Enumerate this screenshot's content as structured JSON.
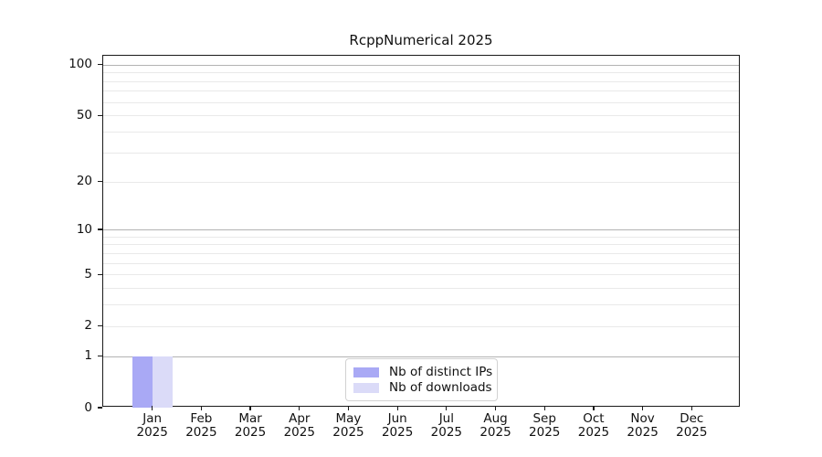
{
  "chart_data": {
    "type": "bar",
    "title": "RcppNumerical 2025",
    "xlabel": "",
    "ylabel": "",
    "yscale": "log1p",
    "ylim": [
      0,
      113
    ],
    "y_ticks": [
      0,
      1,
      2,
      5,
      10,
      20,
      50,
      100
    ],
    "grid": "horizontal, major (powers of 10) + faint minor decade lines",
    "legend_position": "bottom-center inside plot",
    "categories": [
      "Jan 2025",
      "Feb 2025",
      "Mar 2025",
      "Apr 2025",
      "May 2025",
      "Jun 2025",
      "Jul 2025",
      "Aug 2025",
      "Sep 2025",
      "Oct 2025",
      "Nov 2025",
      "Dec 2025"
    ],
    "series": [
      {
        "name": "Nb of distinct IPs",
        "color": "#a9a9f5",
        "values": [
          1,
          0,
          0,
          0,
          0,
          0,
          0,
          0,
          0,
          0,
          0,
          0
        ]
      },
      {
        "name": "Nb of downloads",
        "color": "#dbdbf8",
        "values": [
          1,
          0,
          0,
          0,
          0,
          0,
          0,
          0,
          0,
          0,
          0,
          0
        ]
      }
    ]
  },
  "colors": {
    "major_grid": "#b3b3b3",
    "minor_grid": "#e9e9e9",
    "axis": "#1a1a1a",
    "text": "#111111"
  }
}
